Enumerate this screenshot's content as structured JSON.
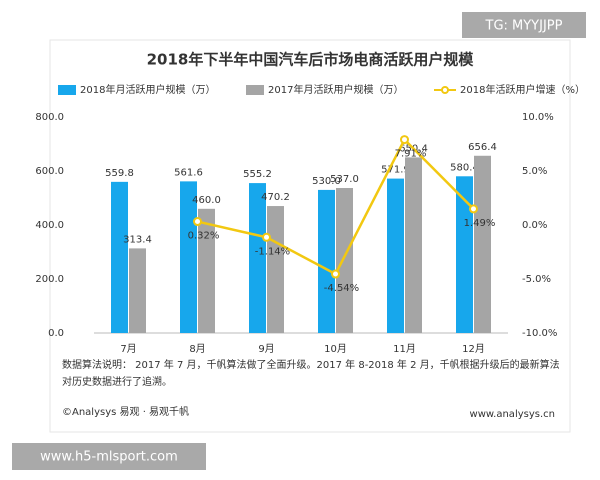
{
  "chart_data": {
    "type": "bar-line",
    "title": "2018年下半年中国汽车后市场电商活跃用户规模",
    "categories": [
      "7月",
      "8月",
      "9月",
      "10月",
      "11月",
      "12月"
    ],
    "series": [
      {
        "name": "2018年月活跃用户规模（万）",
        "type": "bar",
        "color": "#17a7ec",
        "values": [
          559.8,
          561.6,
          555.2,
          530.0,
          571.9,
          580.4
        ],
        "value_labels": [
          "559.8",
          "561.6",
          "555.2",
          "530.0",
          "571.9",
          "580.4"
        ]
      },
      {
        "name": "2017年月活跃用户规模（万）",
        "type": "bar",
        "color": "#a5a5a5",
        "values": [
          313.4,
          460.0,
          470.2,
          537.0,
          650.4,
          656.4
        ],
        "value_labels": [
          "313.4",
          "460.0",
          "470.2",
          "537.0",
          "650.4",
          "656.4"
        ]
      },
      {
        "name": "2018年活跃用户增速（%）",
        "type": "line",
        "axis": "y2",
        "color": "#f2c811",
        "values": [
          null,
          0.32,
          -1.14,
          -4.54,
          7.91,
          1.49
        ],
        "value_labels": [
          null,
          "0.32%",
          "-1.14%",
          "-4.54%",
          "7.91%",
          "1.49%"
        ]
      }
    ],
    "ylim": [
      0,
      800
    ],
    "yticks": [
      {
        "value": 0,
        "label": "0.0"
      },
      {
        "value": 200,
        "label": "200.0"
      },
      {
        "value": 400,
        "label": "400.0"
      },
      {
        "value": 600,
        "label": "600.0"
      },
      {
        "value": 800,
        "label": "800.0"
      }
    ],
    "y2lim": [
      -10,
      10
    ],
    "y2ticks": [
      {
        "value": -10,
        "label": "-10.0%"
      },
      {
        "value": -5,
        "label": "-5.0%"
      },
      {
        "value": 0,
        "label": "0.0%"
      },
      {
        "value": 5,
        "label": "5.0%"
      },
      {
        "value": 10,
        "label": "10.0%"
      }
    ],
    "grid": false,
    "note": [
      "数据算法说明：  2017 年 7 月，千帆算法做了全面升级。2017 年 8-2018 年 2 月，千帆根据升级后的最新算法",
      "对历史数据进行了追溯。"
    ],
    "source": "©Analysys 易观 · 易观千帆",
    "website": "www.analysys.cn"
  },
  "watermarks": [
    "TG: MYYJJPP",
    "www.h5-mlsport.com"
  ]
}
